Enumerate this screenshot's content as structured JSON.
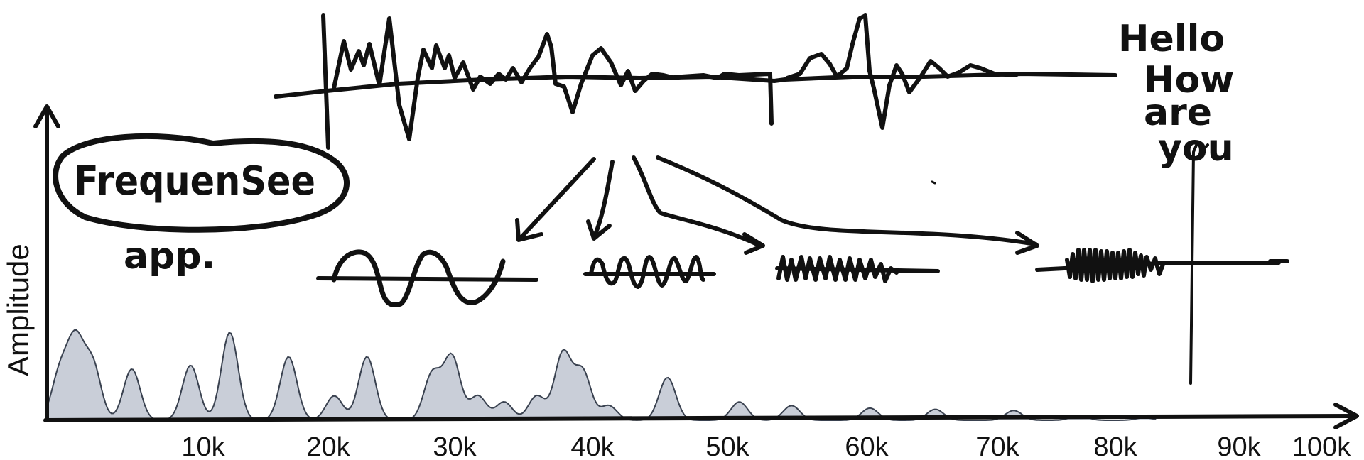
{
  "title_text": "FrequenSee",
  "subtitle_text": "app.",
  "greeting_lines": [
    "Hello",
    "How",
    "are",
    "you"
  ],
  "chart_data": {
    "type": "area",
    "title": "",
    "xlabel": "",
    "ylabel": "Amplitude",
    "x_tick_labels": [
      "10k",
      "20k",
      "30k",
      "40k",
      "50k",
      "60k",
      "70k",
      "80k",
      "90k",
      "100k"
    ],
    "xlim": [
      0,
      100000
    ],
    "grid": false,
    "fill_color": "#c9ced8",
    "line_color": "#3a4250",
    "spectrum_peaks": [
      {
        "x": 1000,
        "y": 0.38
      },
      {
        "x": 2200,
        "y": 0.62
      },
      {
        "x": 3500,
        "y": 0.45
      },
      {
        "x": 6500,
        "y": 0.42
      },
      {
        "x": 11000,
        "y": 0.45
      },
      {
        "x": 14000,
        "y": 0.72
      },
      {
        "x": 18500,
        "y": 0.52
      },
      {
        "x": 22000,
        "y": 0.2
      },
      {
        "x": 24500,
        "y": 0.52
      },
      {
        "x": 29500,
        "y": 0.38
      },
      {
        "x": 31000,
        "y": 0.52
      },
      {
        "x": 33000,
        "y": 0.2
      },
      {
        "x": 35000,
        "y": 0.15
      },
      {
        "x": 37500,
        "y": 0.2
      },
      {
        "x": 39500,
        "y": 0.55
      },
      {
        "x": 41000,
        "y": 0.4
      },
      {
        "x": 43000,
        "y": 0.12
      },
      {
        "x": 47500,
        "y": 0.35
      },
      {
        "x": 53000,
        "y": 0.15
      },
      {
        "x": 57000,
        "y": 0.12
      },
      {
        "x": 63000,
        "y": 0.1
      },
      {
        "x": 68000,
        "y": 0.09
      },
      {
        "x": 74000,
        "y": 0.08
      },
      {
        "x": 79000,
        "y": 0.04
      },
      {
        "x": 84000,
        "y": 0.02
      }
    ]
  }
}
